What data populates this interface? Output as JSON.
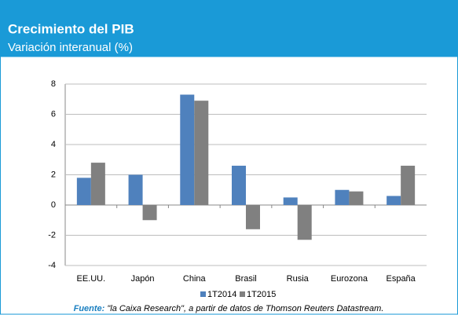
{
  "chart_data": {
    "type": "bar",
    "title": "Crecimiento del PIB",
    "subtitle": "Variación interanual (%)",
    "categories": [
      "EE.UU.",
      "Japón",
      "China",
      "Brasil",
      "Rusia",
      "Eurozona",
      "España"
    ],
    "series": [
      {
        "name": "1T2014",
        "color": "#4f81bd",
        "values": [
          1.8,
          2.0,
          7.3,
          2.6,
          0.5,
          1.0,
          0.6
        ]
      },
      {
        "name": "1T2015",
        "color": "#808080",
        "values": [
          2.8,
          -1.0,
          6.9,
          -1.6,
          -2.3,
          0.9,
          2.6
        ]
      }
    ],
    "ylim": [
      -4,
      8
    ],
    "yticks": [
      -4,
      -2,
      0,
      2,
      4,
      6,
      8
    ],
    "grid": true,
    "legend": "bottom",
    "source_label": "Fuente:",
    "source_text": "\"la Caixa Research\", a partir de datos de Thomson Reuters  Datastream."
  }
}
